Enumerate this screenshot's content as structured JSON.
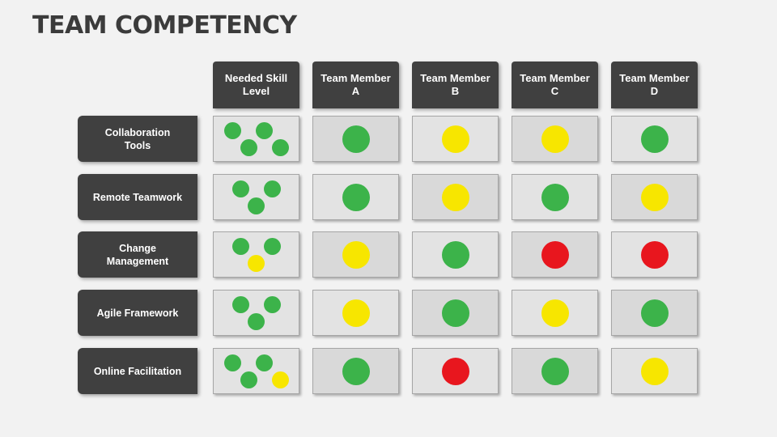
{
  "title": "TEAM COMPETENCY",
  "colors": {
    "green": "#3cb34a",
    "yellow": "#f7e600",
    "red": "#e8161e"
  },
  "columns": [
    "Needed Skill Level",
    "Team Member A",
    "Team Member B",
    "Team Member C",
    "Team Member D"
  ],
  "rows": [
    {
      "skill": "Collaboration Tools",
      "needed": [
        "green",
        "green",
        "green",
        "green"
      ],
      "members": [
        "green",
        "yellow",
        "yellow",
        "green"
      ]
    },
    {
      "skill": "Remote Teamwork",
      "needed": [
        "green",
        "green",
        "green"
      ],
      "members": [
        "green",
        "yellow",
        "green",
        "yellow"
      ]
    },
    {
      "skill": "Change Management",
      "needed": [
        "green",
        "green",
        "yellow"
      ],
      "members": [
        "yellow",
        "green",
        "red",
        "red"
      ]
    },
    {
      "skill": "Agile Framework",
      "needed": [
        "green",
        "green",
        "green"
      ],
      "members": [
        "yellow",
        "green",
        "yellow",
        "green"
      ]
    },
    {
      "skill": "Online Facilitation",
      "needed": [
        "green",
        "green",
        "green",
        "yellow"
      ],
      "members": [
        "green",
        "red",
        "green",
        "yellow"
      ]
    }
  ]
}
